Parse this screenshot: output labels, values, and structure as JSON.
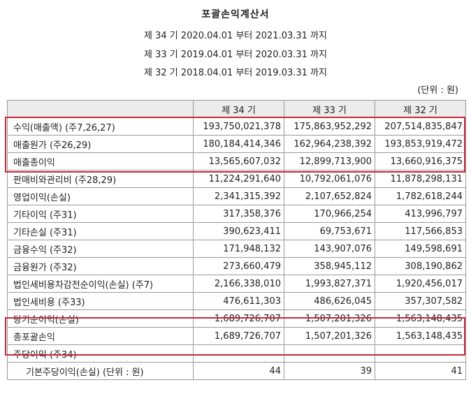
{
  "title": "포괄손익계산서",
  "periods": [
    "제 34 기 2020.04.01 부터 2021.03.31 까지",
    "제 33 기 2019.04.01 부터 2020.03.31 까지",
    "제 32 기 2018.04.01 부터 2019.03.31 까지"
  ],
  "unit": "(단위 : 원)",
  "columns": [
    "",
    "제 34 기",
    "제 33 기",
    "제 32 기"
  ],
  "rows": [
    {
      "label": "수익(매출액) (주7,26,27)",
      "v34": "193,750,021,378",
      "v33": "175,863,952,292",
      "v32": "207,514,835,847"
    },
    {
      "label": "매출원가 (주26,29)",
      "v34": "180,184,414,346",
      "v33": "162,964,238,392",
      "v32": "193,853,919,472"
    },
    {
      "label": "매출총이익",
      "v34": "13,565,607,032",
      "v33": "12,899,713,900",
      "v32": "13,660,916,375"
    },
    {
      "label": "판매비와관리비 (주28,29)",
      "v34": "11,224,291,640",
      "v33": "10,792,061,076",
      "v32": "11,878,298,131"
    },
    {
      "label": "영업이익(손실)",
      "v34": "2,341,315,392",
      "v33": "2,107,652,824",
      "v32": "1,782,618,244"
    },
    {
      "label": "기타이익 (주31)",
      "v34": "317,358,376",
      "v33": "170,966,254",
      "v32": "413,996,797"
    },
    {
      "label": "기타손실 (주31)",
      "v34": "390,623,411",
      "v33": "69,753,671",
      "v32": "117,566,853"
    },
    {
      "label": "금융수익 (주32)",
      "v34": "171,948,132",
      "v33": "143,907,076",
      "v32": "149,598,691"
    },
    {
      "label": "금융원가 (주32)",
      "v34": "273,660,479",
      "v33": "358,945,112",
      "v32": "308,190,862"
    },
    {
      "label": "법인세비용차감전순이익(손실) (주7)",
      "v34": "2,166,338,010",
      "v33": "1,993,827,371",
      "v32": "1,920,456,017"
    },
    {
      "label": "법인세비용 (주33)",
      "v34": "476,611,303",
      "v33": "486,626,045",
      "v32": "357,307,582"
    },
    {
      "label": "당기순이익(손실)",
      "v34": "1,689,726,707",
      "v33": "1,507,201,326",
      "v32": "1,563,148,435"
    },
    {
      "label": "총포괄손익",
      "v34": "1,689,726,707",
      "v33": "1,507,201,326",
      "v32": "1,563,148,435"
    },
    {
      "label": "주당이익 (주34)",
      "v34": "",
      "v33": "",
      "v32": ""
    },
    {
      "label": "기본주당이익(손실) (단위 : 원)",
      "v34": "44",
      "v33": "39",
      "v32": "41"
    }
  ],
  "highlight_color": "#c8283a"
}
